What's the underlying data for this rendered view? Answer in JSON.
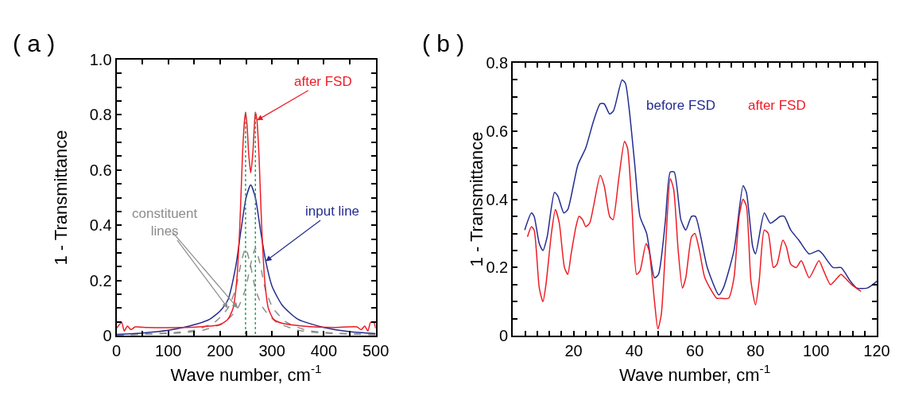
{
  "chart_data": [
    {
      "type": "line",
      "title": "( a )",
      "xlabel": "Wave number, cm$^{-1}$",
      "ylabel": "1 - Transmittance",
      "xlim": [
        0,
        500
      ],
      "ylim": [
        0,
        1.0
      ],
      "xticks": [
        0,
        {
          "value": 50,
          "label": null
        },
        100,
        {
          "value": 150,
          "label": null
        },
        200,
        {
          "value": 250,
          "label": null
        },
        300,
        {
          "value": 350,
          "label": null
        },
        400,
        {
          "value": 450,
          "label": null
        },
        500
      ],
      "yticks": [
        0,
        {
          "value": 0.05,
          "label": null
        },
        {
          "value": 0.1,
          "label": null
        },
        {
          "value": 0.15,
          "label": null
        },
        0.2,
        {
          "value": 0.25,
          "label": null
        },
        {
          "value": 0.3,
          "label": null
        },
        {
          "value": 0.35,
          "label": null
        },
        0.4,
        {
          "value": 0.45,
          "label": null
        },
        {
          "value": 0.5,
          "label": null
        },
        {
          "value": 0.55,
          "label": null
        },
        0.6,
        {
          "value": 0.65,
          "label": null
        },
        {
          "value": 0.7,
          "label": null
        },
        {
          "value": 0.75,
          "label": null
        },
        0.8,
        {
          "value": 0.85,
          "label": null
        },
        {
          "value": 0.9,
          "label": null
        },
        {
          "value": 0.95,
          "label": null
        },
        {
          "value": 1,
          "label": "1.0"
        }
      ],
      "grid": false,
      "legend": false,
      "series": [
        {
          "name": "constituent lines",
          "color": "#8c8c8c",
          "line_style": "dashed",
          "x": [
            0,
            100,
            150,
            190,
            215,
            230,
            240,
            249,
            258,
            268,
            283,
            308,
            350,
            400,
            500
          ],
          "values": [
            0.003,
            0.01,
            0.02,
            0.05,
            0.1,
            0.17,
            0.26,
            0.317,
            0.26,
            0.17,
            0.1,
            0.05,
            0.02,
            0.01,
            0.004
          ]
        },
        {
          "color": "#8c8c8c",
          "line_style": "dashed",
          "x": [
            0,
            117,
            167,
            209,
            234,
            249,
            259,
            268,
            277,
            287,
            302,
            327,
            367,
            417,
            500
          ],
          "values": [
            0.003,
            0.01,
            0.02,
            0.05,
            0.1,
            0.17,
            0.26,
            0.317,
            0.26,
            0.17,
            0.1,
            0.05,
            0.02,
            0.01,
            0.004
          ]
        },
        {
          "name": "input line",
          "color": "#232c8f",
          "line_style": "solid",
          "x": [
            0,
            50,
            100,
            150,
            180,
            200,
            215,
            230,
            240,
            250,
            259,
            268,
            278,
            288,
            300,
            320,
            350,
            400,
            450,
            500
          ],
          "values": [
            0.005,
            0.01,
            0.02,
            0.04,
            0.06,
            0.09,
            0.13,
            0.25,
            0.38,
            0.5,
            0.546,
            0.5,
            0.38,
            0.27,
            0.18,
            0.11,
            0.06,
            0.03,
            0.015,
            0.008
          ]
        },
        {
          "name": "after FSD",
          "color": "#ee1c24",
          "line_style": "solid",
          "x": [
            0,
            10,
            15,
            21,
            28,
            36,
            60,
            120,
            180,
            200,
            215,
            225,
            232,
            238,
            243,
            247,
            249,
            252,
            255,
            259,
            263,
            266,
            268,
            271,
            275,
            280,
            286,
            293,
            303,
            320,
            360,
            420,
            464,
            472,
            479,
            485,
            490,
            496,
            500
          ],
          "values": [
            0.027,
            0.048,
            0.017,
            0.035,
            0.022,
            0.032,
            0.03,
            0.03,
            0.035,
            0.04,
            0.06,
            0.1,
            0.2,
            0.4,
            0.65,
            0.78,
            0.81,
            0.76,
            0.66,
            0.59,
            0.66,
            0.76,
            0.81,
            0.78,
            0.65,
            0.4,
            0.2,
            0.1,
            0.06,
            0.045,
            0.035,
            0.03,
            0.032,
            0.022,
            0.035,
            0.017,
            0.048,
            0.05,
            0.027
          ]
        },
        {
          "color": "#1fa35a",
          "line_style": "dotted",
          "x": [
            249,
            249
          ],
          "values": [
            0.81,
            0
          ]
        },
        {
          "color": "#1fa35a",
          "line_style": "dotted",
          "x": [
            268,
            268
          ],
          "values": [
            0.81,
            0
          ]
        }
      ]
    },
    {
      "type": "line",
      "title": "( b )",
      "xlabel": "Wave number, cm$^{-1}$",
      "ylabel": "1 - Transmittance",
      "xlim": [
        0,
        120
      ],
      "ylim": [
        0,
        0.8
      ],
      "xticks": [
        {
          "value": 0,
          "label": null
        },
        {
          "value": 4,
          "label": null
        },
        {
          "value": 8,
          "label": null
        },
        {
          "value": 12,
          "label": null
        },
        {
          "value": 16,
          "label": null
        },
        20,
        {
          "value": 24,
          "label": null
        },
        {
          "value": 28,
          "label": null
        },
        {
          "value": 32,
          "label": null
        },
        {
          "value": 36,
          "label": null
        },
        40,
        {
          "value": 44,
          "label": null
        },
        {
          "value": 48,
          "label": null
        },
        {
          "value": 52,
          "label": null
        },
        {
          "value": 56,
          "label": null
        },
        60,
        {
          "value": 64,
          "label": null
        },
        {
          "value": 68,
          "label": null
        },
        {
          "value": 72,
          "label": null
        },
        {
          "value": 76,
          "label": null
        },
        80,
        {
          "value": 84,
          "label": null
        },
        {
          "value": 88,
          "label": null
        },
        {
          "value": 92,
          "label": null
        },
        {
          "value": 96,
          "label": null
        },
        100,
        {
          "value": 104,
          "label": null
        },
        {
          "value": 108,
          "label": null
        },
        {
          "value": 112,
          "label": null
        },
        {
          "value": 116,
          "label": null
        },
        120
      ],
      "yticks": [
        0,
        {
          "value": 0.05,
          "label": null
        },
        {
          "value": 0.1,
          "label": null
        },
        {
          "value": 0.15,
          "label": null
        },
        0.2,
        {
          "value": 0.25,
          "label": null
        },
        {
          "value": 0.3,
          "label": null
        },
        {
          "value": 0.35,
          "label": null
        },
        0.4,
        {
          "value": 0.45,
          "label": null
        },
        {
          "value": 0.5,
          "label": null
        },
        {
          "value": 0.55,
          "label": null
        },
        0.6,
        {
          "value": 0.65,
          "label": null
        },
        {
          "value": 0.7,
          "label": null
        },
        {
          "value": 0.75,
          "label": null
        },
        0.8
      ],
      "grid": false,
      "legend": false,
      "series": [
        {
          "name": "before FSD",
          "color": "#232c8f",
          "line_style": "solid",
          "x": [
            3.9,
            6.1,
            7.0,
            8.7,
            9.9,
            11.3,
            13.7,
            14.8,
            16.8,
            18.1,
            21.4,
            24.0,
            26.6,
            28.8,
            30.1,
            31.9,
            33.2,
            36.0,
            37.1,
            38.4,
            40.2,
            41.9,
            44.1,
            46.7,
            48.0,
            50.2,
            51.9,
            53.2,
            55.4,
            57.0,
            58.9,
            60.2,
            64.1,
            67.9,
            69.4,
            72.9,
            75.9,
            77.0,
            79.1,
            80.0,
            82.9,
            84.9,
            88.2,
            89.5,
            91.6,
            94.3,
            97.7,
            100.8,
            102.1,
            105.6,
            108.2,
            111.3,
            113.4,
            116.9,
            120.0
          ],
          "values": [
            0.31,
            0.36,
            0.35,
            0.27,
            0.25,
            0.29,
            0.42,
            0.41,
            0.36,
            0.37,
            0.5,
            0.55,
            0.63,
            0.68,
            0.68,
            0.65,
            0.66,
            0.75,
            0.74,
            0.66,
            0.5,
            0.35,
            0.3,
            0.17,
            0.18,
            0.33,
            0.48,
            0.48,
            0.34,
            0.31,
            0.35,
            0.35,
            0.2,
            0.12,
            0.14,
            0.25,
            0.44,
            0.42,
            0.26,
            0.24,
            0.36,
            0.33,
            0.35,
            0.35,
            0.31,
            0.28,
            0.24,
            0.25,
            0.24,
            0.2,
            0.2,
            0.16,
            0.14,
            0.14,
            0.16
          ]
        },
        {
          "name": "after FSD",
          "color": "#ee1c24",
          "line_style": "solid",
          "x": [
            4.8,
            6.1,
            7.0,
            8.7,
            9.9,
            10.9,
            12.7,
            14.0,
            15.3,
            17.0,
            18.1,
            19.2,
            20.8,
            21.8,
            23.0,
            24.0,
            25.3,
            26.6,
            28.8,
            30.1,
            31.9,
            33.0,
            34.9,
            36.8,
            37.8,
            39.3,
            40.8,
            41.9,
            43.9,
            44.9,
            46.7,
            47.8,
            48.9,
            50.4,
            51.9,
            53.0,
            54.5,
            55.9,
            57.0,
            58.9,
            60.0,
            61.5,
            63.3,
            67.2,
            68.5,
            71.1,
            72.9,
            74.6,
            75.9,
            77.0,
            78.5,
            80.0,
            81.2,
            82.9,
            84.2,
            85.9,
            87.1,
            89.0,
            90.2,
            91.6,
            93.4,
            95.1,
            97.7,
            100.9,
            102.5,
            104.7,
            106.0,
            108.2,
            109.5,
            111.7,
            114.8
          ],
          "values": [
            0.29,
            0.32,
            0.31,
            0.14,
            0.1,
            0.15,
            0.3,
            0.37,
            0.33,
            0.2,
            0.18,
            0.24,
            0.32,
            0.35,
            0.34,
            0.32,
            0.33,
            0.38,
            0.47,
            0.44,
            0.35,
            0.34,
            0.46,
            0.57,
            0.55,
            0.37,
            0.18,
            0.19,
            0.27,
            0.25,
            0.1,
            0.02,
            0.06,
            0.27,
            0.46,
            0.43,
            0.25,
            0.14,
            0.17,
            0.29,
            0.3,
            0.25,
            0.17,
            0.11,
            0.11,
            0.11,
            0.17,
            0.35,
            0.4,
            0.38,
            0.16,
            0.09,
            0.16,
            0.31,
            0.3,
            0.2,
            0.21,
            0.28,
            0.26,
            0.21,
            0.2,
            0.22,
            0.17,
            0.22,
            0.19,
            0.15,
            0.16,
            0.18,
            0.17,
            0.15,
            0.13
          ]
        }
      ]
    }
  ]
}
